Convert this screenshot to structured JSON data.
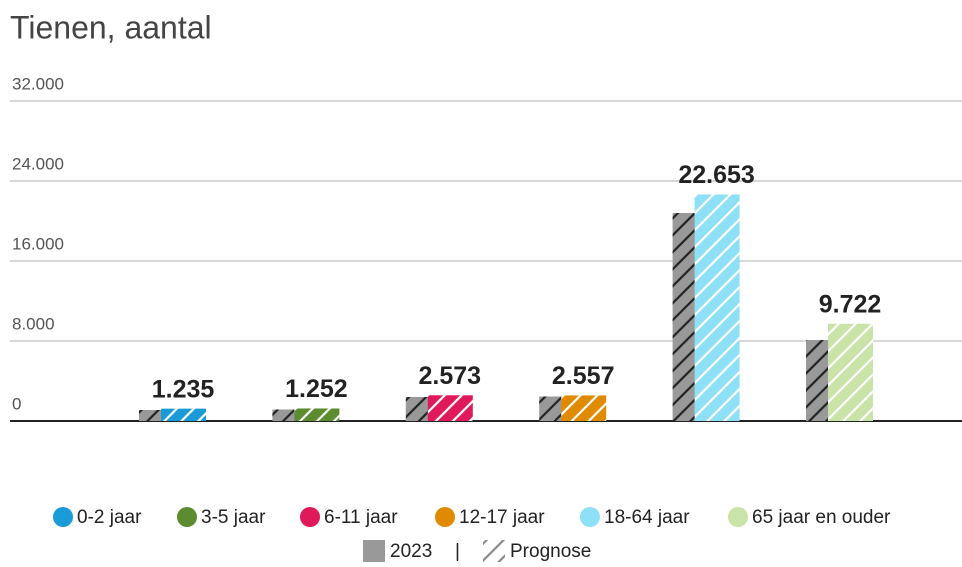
{
  "chart_data": {
    "type": "bar",
    "title": "Tienen, aantal",
    "categories": [
      "0-2 jaar",
      "3-5 jaar",
      "6-11 jaar",
      "12-17 jaar",
      "18-64 jaar",
      "65 jaar en ouder"
    ],
    "series": [
      {
        "name": "2023",
        "color": "#999999",
        "values": [
          1100,
          1150,
          2400,
          2450,
          20800,
          8100
        ]
      },
      {
        "name": "Prognose",
        "colors": [
          "#1a9ad6",
          "#5d8b2f",
          "#e0195a",
          "#e08a00",
          "#8ee0f7",
          "#c9e3a8"
        ],
        "values": [
          1235,
          1252,
          2573,
          2557,
          22653,
          9722
        ],
        "value_labels": [
          "1.235",
          "1.252",
          "2.573",
          "2.557",
          "22.653",
          "9.722"
        ]
      }
    ],
    "ylim": [
      0,
      32000
    ],
    "yticks": [
      0,
      {
        "value": 8000,
        "label": "8.000"
      },
      {
        "value": 16000,
        "label": "16.000"
      },
      {
        "value": 24000,
        "label": "24.000"
      },
      {
        "value": 32000,
        "label": "32.000"
      }
    ],
    "grid": true,
    "hatch": true,
    "legend": "bottom",
    "legend_separator": "|"
  }
}
